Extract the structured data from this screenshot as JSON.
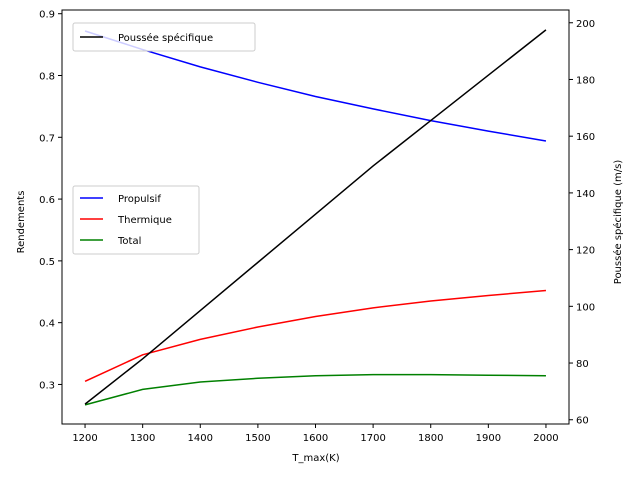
{
  "chart_data": {
    "type": "line",
    "title": "",
    "xlabel": "T_max(K)",
    "ylabel_left": "Rendements",
    "ylabel_right": "Poussée spécifique (m/s)",
    "xlim": [
      1160,
      2040
    ],
    "ylim_left": [
      0.236,
      0.906
    ],
    "ylim_right": [
      58.5,
      204.5
    ],
    "x_ticks": [
      1200,
      1300,
      1400,
      1500,
      1600,
      1700,
      1800,
      1900,
      2000
    ],
    "y_left_ticks": [
      0.3,
      0.4,
      0.5,
      0.6,
      0.7,
      0.8,
      0.9
    ],
    "y_right_ticks": [
      60,
      80,
      100,
      120,
      140,
      160,
      180,
      200
    ],
    "grid": false,
    "x": [
      1200,
      1300,
      1400,
      1500,
      1600,
      1700,
      1800,
      1900,
      2000
    ],
    "series_left": [
      {
        "name": "Propulsif",
        "color": "#0000ff",
        "values": [
          0.872,
          0.842,
          0.814,
          0.789,
          0.766,
          0.746,
          0.727,
          0.71,
          0.694
        ]
      },
      {
        "name": "Thermique",
        "color": "#ff0000",
        "values": [
          0.305,
          0.348,
          0.373,
          0.393,
          0.41,
          0.424,
          0.435,
          0.444,
          0.452
        ]
      },
      {
        "name": "Total",
        "color": "#008000",
        "values": [
          0.267,
          0.292,
          0.304,
          0.31,
          0.314,
          0.316,
          0.316,
          0.315,
          0.314
        ]
      }
    ],
    "series_right": [
      {
        "name": "Poussée spécifique",
        "color": "#000000",
        "values": [
          65.5,
          81.5,
          98.5,
          115.5,
          132.5,
          149.5,
          165.5,
          181.5,
          197.5
        ]
      }
    ],
    "legend_left_placement": "center-left",
    "legend_right_placement": "top-left"
  }
}
